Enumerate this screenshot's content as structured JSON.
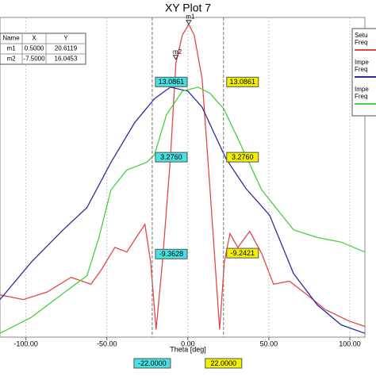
{
  "chart_data": {
    "type": "line",
    "title": "XY Plot 7",
    "x_label": "Theta [deg]",
    "xlim": [
      -116,
      109.3
    ],
    "ylim": [
      -20.2,
      21.5
    ],
    "xticks": [
      {
        "value": -100,
        "label": "-100.00"
      },
      {
        "value": -50,
        "label": "-50.00"
      },
      {
        "value": 0,
        "label": "0.00"
      },
      {
        "value": 50,
        "label": "50.00"
      },
      {
        "value": 100,
        "label": "100.00"
      }
    ],
    "grid": true,
    "series": [
      {
        "name": "Setu",
        "name2": "Freq",
        "color": "#e04848",
        "x": [
          -116,
          -101.5,
          -86.8,
          -72.1,
          -59.8,
          -53.4,
          -45.1,
          -37.7,
          -31.9,
          -26.5,
          -23.0,
          -19.6,
          -15.7,
          -10.8,
          -7.4,
          -3.4,
          0.5,
          3.9,
          8.8,
          13.7,
          19.6,
          22.5,
          26,
          30.9,
          38.2,
          45.6,
          52.9,
          62.7,
          72.5,
          84.8,
          99.5,
          109.3
        ],
        "values": [
          -14.7,
          -15.3,
          -14.3,
          -12.4,
          -13.3,
          -11.4,
          -8.5,
          -9.1,
          -7.2,
          -5.5,
          -10.4,
          -19.2,
          -10.4,
          3.1,
          15.5,
          19.2,
          20.6,
          19.2,
          13.5,
          -1.0,
          -19.2,
          -10.4,
          -6.7,
          -8.5,
          -6.4,
          -9.3,
          -13.3,
          -12.9,
          -14.5,
          -16.6,
          -18.1,
          -18.8
        ]
      },
      {
        "name": "Impe",
        "name2": "Freq",
        "color": "#2b2b9c",
        "x": [
          -116,
          -96.6,
          -77,
          -62.3,
          -47.5,
          -32.8,
          -20.6,
          -10.8,
          0,
          8.8,
          16.2,
          23.5,
          35.8,
          50.5,
          65.2,
          79.9,
          94.6,
          109.3
        ],
        "values": [
          -15.3,
          -10.4,
          -6.2,
          -3.3,
          2.6,
          7.8,
          10.9,
          12.4,
          11.9,
          9.8,
          6.4,
          3.1,
          -0.8,
          -4.3,
          -11.9,
          -16.0,
          -18.6,
          -19.7
        ]
      },
      {
        "name": "Impe",
        "name2": "Freq",
        "color": "#44d044",
        "x": [
          -116,
          -96.6,
          -77,
          -62.3,
          -54.9,
          -47.5,
          -37.7,
          -25.5,
          -20.6,
          -13.2,
          -3.4,
          6.4,
          13.7,
          22.1,
          30.9,
          45.6,
          65.2,
          79.9,
          94.6,
          109.3
        ],
        "values": [
          -19.7,
          -17.6,
          -14.5,
          -12.2,
          -7.2,
          -1.0,
          1.6,
          2.6,
          3.6,
          8.8,
          11.9,
          12.4,
          11.6,
          9.6,
          5.7,
          -1.0,
          -6.2,
          -7.2,
          -7.8,
          -9.1
        ]
      }
    ],
    "markers": [
      {
        "name": "m1",
        "x": 0.5,
        "y": 20.6119
      },
      {
        "name": "m2",
        "x": -7.5,
        "y": 16.0453
      }
    ],
    "marker_table": {
      "columns": [
        "Name",
        "X",
        "Y"
      ],
      "rows": [
        [
          "m1",
          "0.5000",
          "20.6119"
        ],
        [
          "m2",
          "-7.5000",
          "16.0453"
        ]
      ]
    },
    "marker_lines": [
      {
        "x": {
          "value": -22,
          "label": "-22.0000"
        },
        "color": "#48e0e0",
        "values": [
          13.0861,
          3.276,
          -9.3628
        ],
        "value_labels": [
          "13.0861",
          "3.2760",
          "-9.3628"
        ]
      },
      {
        "x": {
          "value": 22,
          "label": "22.0000"
        },
        "color": "#f0f000",
        "values": [
          13.0861,
          3.276,
          -9.2421
        ],
        "value_labels": [
          "13.0861",
          "3.2760",
          "-9.2421"
        ]
      }
    ]
  }
}
